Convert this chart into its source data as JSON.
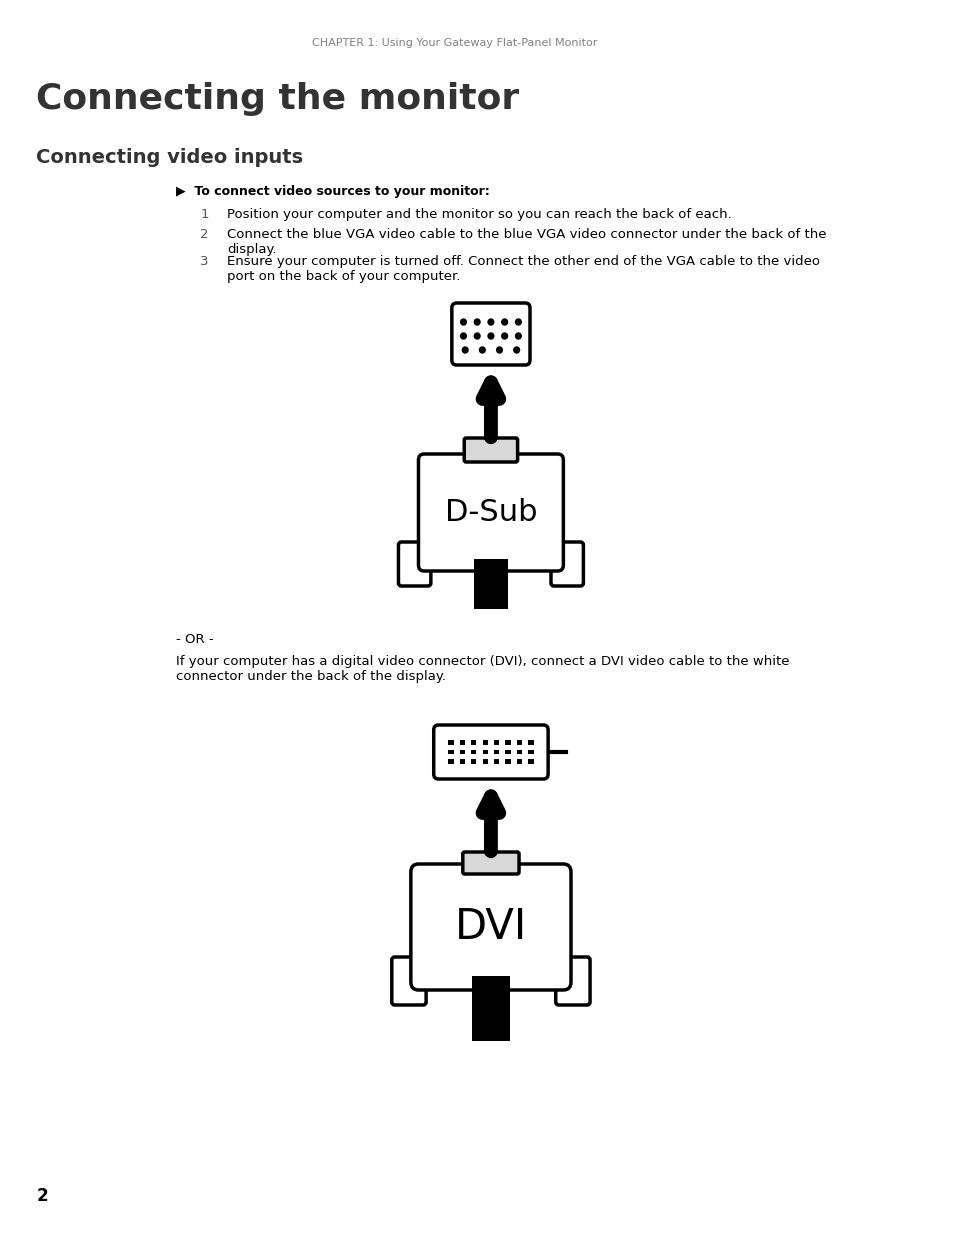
{
  "bg_color": "#ffffff",
  "header_text": "CHAPTER 1: Using Your Gateway Flat-Panel Monitor",
  "header_color": "#808080",
  "header_fontsize": 8,
  "title_text": "Connecting the monitor",
  "title_color": "#333333",
  "title_fontsize": 26,
  "subtitle_text": "Connecting video inputs",
  "subtitle_color": "#333333",
  "subtitle_fontsize": 14,
  "bullet_text": "▶  To connect video sources to your monitor:",
  "bullet_fontsize": 9,
  "body_color": "#000000",
  "step1_num": "1",
  "step1_text": "Position your computer and the monitor so you can reach the back of each.",
  "step2_num": "2",
  "step2_text": "Connect the blue VGA video cable to the blue VGA video connector under the back of the\ndisplay.",
  "step3_num": "3",
  "step3_text": "Ensure your computer is turned off. Connect the other end of the VGA cable to the video\nport on the back of your computer.",
  "or_text": "- OR -",
  "dvi_text": "If your computer has a digital video connector (DVI), connect a DVI video cable to the white\nconnector under the back of the display.",
  "dsub_label": "D-Sub",
  "dvi_label": "DVI",
  "page_num": "2",
  "text_indent": 0.115,
  "step_indent": 0.138,
  "step_text_indent": 0.162,
  "body_fontsize": 9.5
}
